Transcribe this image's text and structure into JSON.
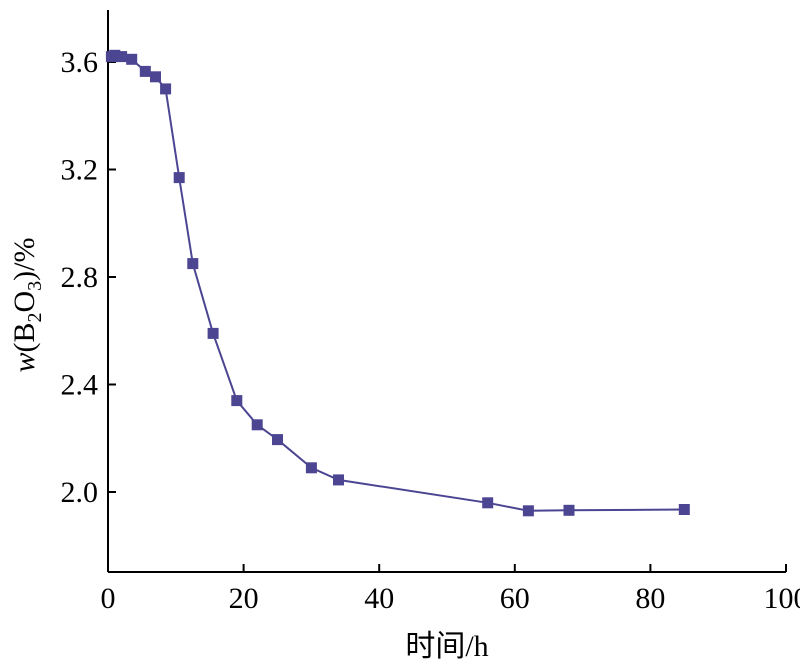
{
  "chart_data": {
    "type": "line",
    "title": "",
    "xlabel": "时间/h",
    "ylabel": {
      "prefix": "w",
      "open": "(B",
      "sub1": "2",
      "mid": "O",
      "sub2": "3",
      "close": ")/%"
    },
    "xlim": [
      0,
      100
    ],
    "ylim": [
      1.7,
      3.8
    ],
    "x_ticks": [
      0,
      20,
      40,
      60,
      80,
      100
    ],
    "x_tick_labels": [
      "0",
      "20",
      "40",
      "60",
      "80",
      "100"
    ],
    "y_ticks": [
      2.0,
      2.4,
      2.8,
      3.2,
      3.6
    ],
    "y_tick_labels": [
      "2.0",
      "2.4",
      "2.8",
      "3.2",
      "3.6"
    ],
    "grid": false,
    "marker": "square",
    "color": "#4b4592",
    "series": [
      {
        "x": [
          0.5,
          1.0,
          2.0,
          3.5,
          5.5,
          7.0,
          8.5,
          10.5,
          12.5,
          15.5,
          19.0,
          22.0,
          25.0,
          30.0,
          34.0,
          56.0,
          62.0,
          68.0,
          85.0
        ],
        "y": [
          3.62,
          3.625,
          3.62,
          3.61,
          3.565,
          3.545,
          3.5,
          3.17,
          2.85,
          2.59,
          2.34,
          2.25,
          2.195,
          2.09,
          2.045,
          1.96,
          1.93,
          1.932,
          1.935
        ]
      }
    ]
  }
}
